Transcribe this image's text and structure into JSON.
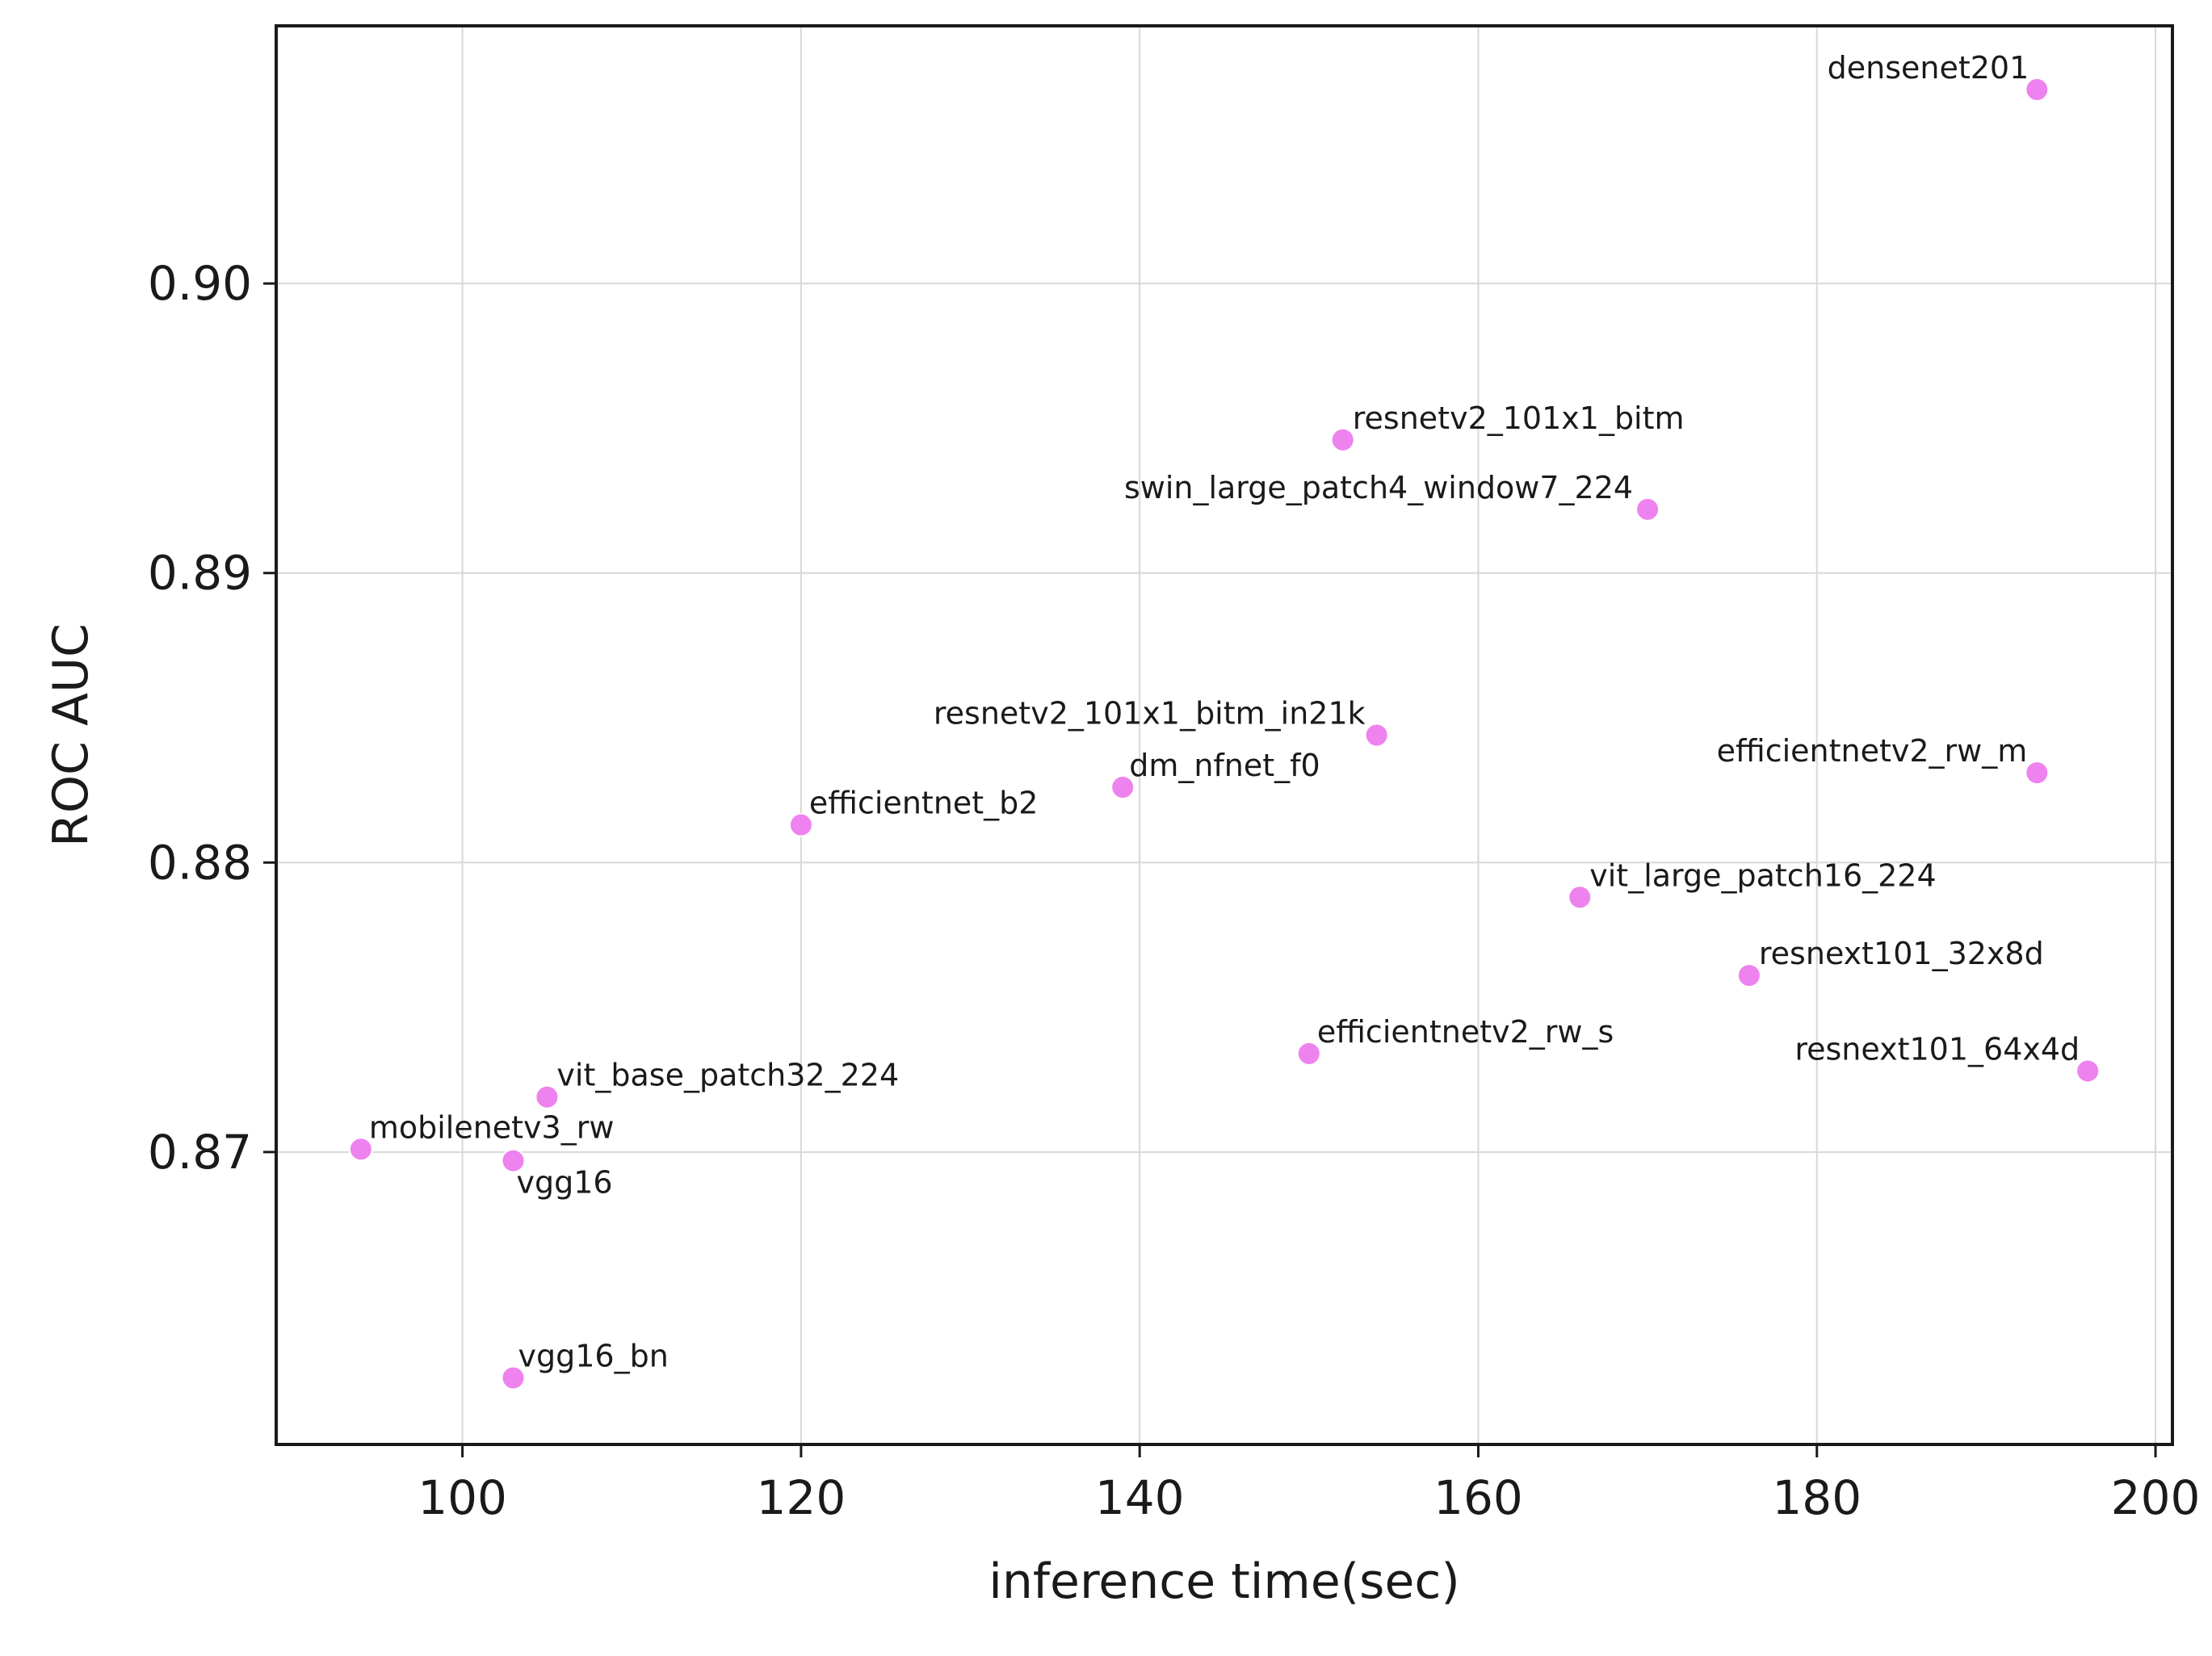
{
  "chart_data": {
    "type": "scatter",
    "xlabel": "inference time(sec)",
    "ylabel": "ROC AUC",
    "xlim": [
      89,
      201
    ],
    "ylim": [
      0.8599,
      0.9089
    ],
    "xticks": [
      100,
      120,
      140,
      160,
      180,
      200
    ],
    "yticks": [
      0.87,
      0.88,
      0.89,
      0.9
    ],
    "xtick_labels": [
      "100",
      "120",
      "140",
      "160",
      "180",
      "200"
    ],
    "ytick_labels": [
      "0.87",
      "0.88",
      "0.89",
      "0.90"
    ],
    "grid": true,
    "marker_color": "#ee82ee",
    "points": [
      {
        "label": "densenet201",
        "x": 193,
        "y": 0.9067
      },
      {
        "label": "resnetv2_101x1_bitm",
        "x": 152,
        "y": 0.8946
      },
      {
        "label": "swin_large_patch4_window7_224",
        "x": 170,
        "y": 0.8922
      },
      {
        "label": "resnetv2_101x1_bitm_in21k",
        "x": 154,
        "y": 0.8844
      },
      {
        "label": "efficientnetv2_rw_m",
        "x": 193,
        "y": 0.8831
      },
      {
        "label": "dm_nfnet_f0",
        "x": 139,
        "y": 0.8826
      },
      {
        "label": "efficientnet_b2",
        "x": 120,
        "y": 0.8813
      },
      {
        "label": "vit_large_patch16_224",
        "x": 166,
        "y": 0.8788
      },
      {
        "label": "resnext101_32x8d",
        "x": 176,
        "y": 0.8761
      },
      {
        "label": "efficientnetv2_rw_s",
        "x": 150,
        "y": 0.8734
      },
      {
        "label": "resnext101_64x4d",
        "x": 196,
        "y": 0.8728
      },
      {
        "label": "vit_base_patch32_224",
        "x": 105,
        "y": 0.8719
      },
      {
        "label": "mobilenetv3_rw",
        "x": 94,
        "y": 0.8701
      },
      {
        "label": "vgg16",
        "x": 103,
        "y": 0.8697
      },
      {
        "label": "vgg16_bn",
        "x": 103,
        "y": 0.8622
      }
    ]
  }
}
